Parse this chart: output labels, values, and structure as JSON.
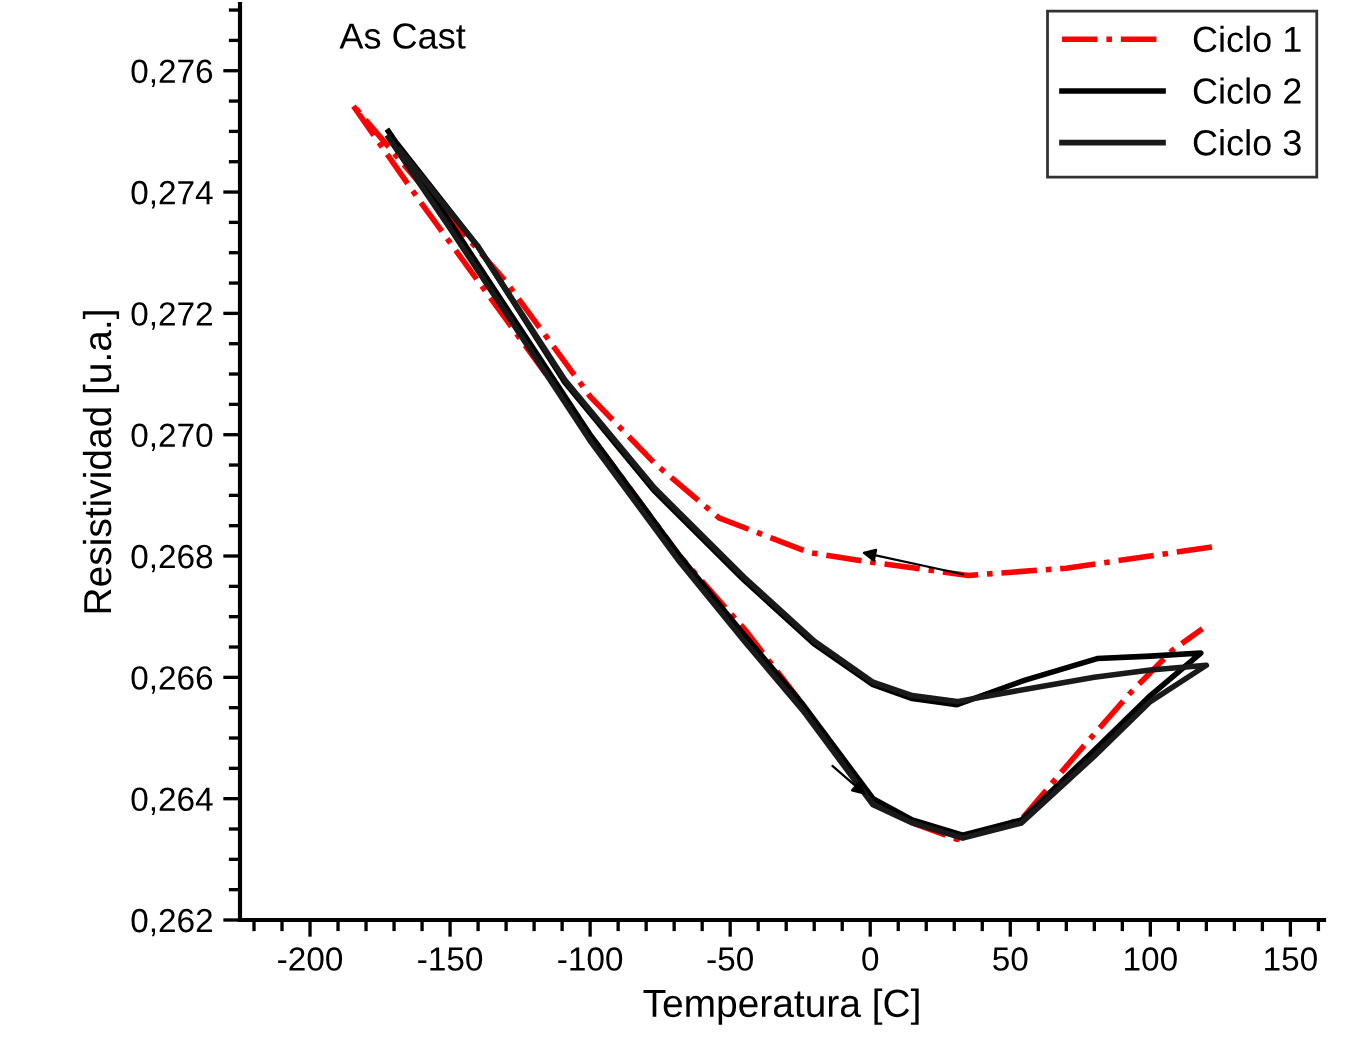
{
  "chart_data": {
    "type": "line",
    "title": "As Cast",
    "xlabel": "Temperatura [C]",
    "ylabel": "Resistividad [u.a.]",
    "xlim": [
      -225,
      162
    ],
    "ylim": [
      0.262,
      0.2771
    ],
    "xticks": [
      -200,
      -150,
      -100,
      -50,
      0,
      50,
      100,
      150
    ],
    "yticks": [
      {
        "value": 0.262,
        "label": "0,262"
      },
      {
        "value": 0.264,
        "label": "0,264"
      },
      {
        "value": 0.266,
        "label": "0,266"
      },
      {
        "value": 0.268,
        "label": "0,268"
      },
      {
        "value": 0.27,
        "label": "0,270"
      },
      {
        "value": 0.272,
        "label": "0,272"
      },
      {
        "value": 0.274,
        "label": "0,274"
      },
      {
        "value": 0.276,
        "label": "0,276"
      }
    ],
    "grid": false,
    "legend": "top right",
    "series": [
      {
        "name": "Ciclo 1",
        "color": "#ff0000",
        "line_style": "dashdot",
        "x": [
          122,
          100,
          70,
          35,
          0,
          -22,
          -54,
          -77,
          -100,
          -130,
          -160,
          -185,
          -160,
          -130,
          -100,
          -68,
          -45,
          -24,
          1,
          15,
          31,
          54,
          74,
          93,
          108,
          118.6
        ],
        "values": [
          0.26815,
          0.268,
          0.2678,
          0.26768,
          0.2679,
          0.26806,
          0.26863,
          0.26953,
          0.27063,
          0.27252,
          0.2741,
          0.27545,
          0.2738,
          0.2719,
          0.27,
          0.268,
          0.2668,
          0.26555,
          null,
          0.2636,
          0.26333,
          0.26366,
          0.26475,
          0.26575,
          0.26645,
          0.2668
        ]
      },
      {
        "name": "Ciclo 2",
        "color": "#000000",
        "line_style": "solid",
        "x": [
          -172,
          -150,
          -120,
          -100,
          -68,
          -45,
          -24,
          1,
          15,
          33,
          54,
          80,
          100,
          118,
          100,
          81,
          55,
          31,
          15,
          1,
          -20,
          -45,
          -77,
          -109,
          -140,
          -169
        ],
        "values": [
          0.275,
          0.2735,
          0.2714,
          0.27,
          0.268,
          0.2667,
          0.26555,
          0.264,
          0.26365,
          0.2634,
          0.26365,
          0.2648,
          0.2657,
          0.2664,
          0.26635,
          0.26631,
          0.26595,
          0.26555,
          0.26565,
          0.26588,
          0.26655,
          0.2676,
          0.26907,
          0.27086,
          0.2731,
          0.2748
        ]
      },
      {
        "name": "Ciclo 3",
        "color": "#1a1a1a",
        "line_style": "solid",
        "x": [
          -172,
          -150,
          -120,
          -100,
          -68,
          -45,
          -24,
          1,
          15,
          33,
          54,
          80,
          100,
          120,
          100,
          80,
          55,
          31,
          15,
          1,
          -20,
          -45,
          -77,
          -109,
          -140,
          -168
        ],
        "values": [
          0.2749,
          0.2734,
          0.2713,
          0.2699,
          0.2679,
          0.2666,
          0.26545,
          0.2639,
          0.2636,
          0.26335,
          0.2636,
          0.2647,
          0.2656,
          0.2662,
          0.26612,
          0.266,
          0.2658,
          0.2656,
          0.2657,
          0.26592,
          0.2666,
          0.26765,
          0.26912,
          0.2709,
          0.2731,
          0.2747
        ]
      }
    ]
  }
}
